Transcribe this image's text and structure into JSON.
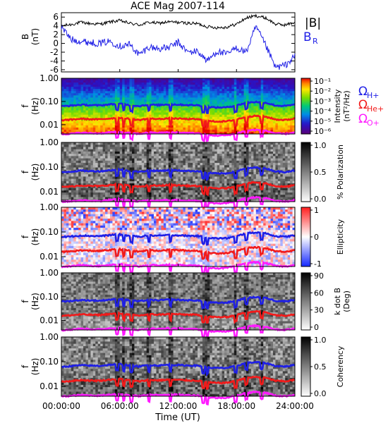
{
  "title": "ACE Mag 2007-114",
  "xaxis": {
    "label": "Time (UT)",
    "ticks": [
      "00:00:00",
      "06:00:00",
      "12:00:00",
      "18:00:00",
      "24:00:00"
    ],
    "range_hours": [
      0,
      24
    ]
  },
  "colors": {
    "black": "#000000",
    "blue": "#1f1fe6",
    "red": "#f21a1a",
    "magenta": "#ff1aff"
  },
  "legend": {
    "b_total": "|B|",
    "b_r": "B",
    "b_r_sub": "R",
    "omega": "Ω",
    "h": "H+",
    "he": "He+",
    "o": "O+"
  },
  "panels": [
    {
      "id": "field",
      "ylabel": "B",
      "yunit": "(nT)",
      "yticks": [
        "6",
        "4",
        "2",
        "0",
        "-2",
        "-4",
        "-6"
      ],
      "ylim": [
        -6.5,
        7
      ]
    },
    {
      "id": "intensity",
      "ylabel": "f",
      "yunit": "(Hz)",
      "yticks": [
        "1.00",
        "0.10",
        "0.01"
      ],
      "colorbar": {
        "label": "Intensity",
        "unit": "(nT²/Hz)",
        "ticks": [
          "10⁻¹",
          "10⁻²",
          "10⁻³",
          "10⁻⁴",
          "10⁻⁵",
          "10⁻⁶"
        ],
        "scale": "rainbow"
      }
    },
    {
      "id": "polarization",
      "ylabel": "f",
      "yunit": "(Hz)",
      "yticks": [
        "1.00",
        "0.10",
        "0.01"
      ],
      "colorbar": {
        "label": "% Polarization",
        "unit": "",
        "ticks": [
          "1.0",
          "0.5",
          "0.0"
        ],
        "scale": "gray"
      }
    },
    {
      "id": "ellipticity",
      "ylabel": "f",
      "yunit": "(Hz)",
      "yticks": [
        "1.00",
        "0.10",
        "0.01"
      ],
      "colorbar": {
        "label": "Ellipticity",
        "unit": "",
        "ticks": [
          "1",
          "0",
          "-1"
        ],
        "scale": "bwr"
      }
    },
    {
      "id": "kdotb",
      "ylabel": "f",
      "yunit": "(Hz)",
      "yticks": [
        "1.00",
        "0.10",
        "0.01"
      ],
      "colorbar": {
        "label": "k dot B",
        "unit": "(Deg)",
        "ticks": [
          "90",
          "60",
          "30",
          "0"
        ],
        "scale": "gray"
      }
    },
    {
      "id": "coherency",
      "ylabel": "f",
      "yunit": "(Hz)",
      "yticks": [
        "1.00",
        "0.10",
        "0.01"
      ],
      "colorbar": {
        "label": "Coherency",
        "unit": "",
        "ticks": [
          "1.0",
          "0.5",
          "0.0"
        ],
        "scale": "gray"
      }
    }
  ],
  "chart_data": [
    {
      "type": "line",
      "title": "ACE Mag 2007-114",
      "xlabel": "Time (UT)",
      "ylabel": "B (nT)",
      "xlim": [
        0,
        24
      ],
      "ylim": [
        -6.5,
        7
      ],
      "x": [
        0,
        1,
        2,
        3,
        4,
        5,
        6,
        7,
        8,
        9,
        10,
        11,
        12,
        13,
        14,
        15,
        16,
        17,
        18,
        19,
        20,
        21,
        22,
        23,
        24
      ],
      "series": [
        {
          "name": "|B|",
          "color": "#000000",
          "values": [
            4.0,
            4.3,
            4.8,
            4.5,
            4.4,
            4.9,
            5.2,
            4.6,
            4.2,
            4.8,
            4.6,
            4.9,
            4.8,
            4.6,
            4.5,
            3.8,
            3.6,
            3.7,
            4.4,
            5.8,
            6.3,
            5.8,
            4.4,
            4.2,
            4.8
          ]
        },
        {
          "name": "B_R",
          "color": "#1f1fe6",
          "values": [
            3.8,
            0.9,
            0.5,
            0.2,
            0.0,
            0.5,
            -0.6,
            -0.2,
            -2.6,
            -0.8,
            -1.2,
            -1.0,
            0.2,
            -2.0,
            -1.8,
            -4.0,
            -1.8,
            -2.5,
            -1.0,
            -2.0,
            3.8,
            -0.5,
            -5.5,
            -5.0,
            -3.0
          ]
        }
      ]
    },
    {
      "type": "heatmap",
      "title": "",
      "xlabel": "Time (UT)",
      "ylabel": "f (Hz)",
      "yscale": "log",
      "xlim": [
        0,
        24
      ],
      "ylim": [
        0.004,
        1.0
      ],
      "colorbar": "Intensity (nT²/Hz)",
      "overlay_x": [
        0,
        1,
        2,
        3,
        4,
        5,
        6,
        7,
        8,
        9,
        10,
        11,
        12,
        13,
        14,
        15,
        16,
        17,
        18,
        19,
        20,
        21,
        22,
        23,
        24
      ],
      "series": [
        {
          "name": "Ω H+",
          "color": "#1f1fe6",
          "values": [
            0.062,
            0.066,
            0.072,
            0.069,
            0.068,
            0.075,
            0.08,
            0.07,
            0.064,
            0.073,
            0.07,
            0.075,
            0.073,
            0.07,
            0.069,
            0.058,
            0.055,
            0.056,
            0.067,
            0.088,
            0.096,
            0.088,
            0.067,
            0.064,
            0.073
          ]
        },
        {
          "name": "Ω He+",
          "color": "#f21a1a",
          "values": [
            0.0155,
            0.0165,
            0.018,
            0.0172,
            0.017,
            0.0187,
            0.02,
            0.0175,
            0.016,
            0.0183,
            0.0175,
            0.0187,
            0.0183,
            0.0175,
            0.0172,
            0.0145,
            0.0137,
            0.014,
            0.0168,
            0.022,
            0.024,
            0.022,
            0.0168,
            0.016,
            0.0183
          ]
        },
        {
          "name": "Ω O+",
          "color": "#ff1aff",
          "values": [
            0.0039,
            0.0041,
            0.0045,
            0.0043,
            0.0042,
            0.0047,
            0.005,
            0.0044,
            0.004,
            0.0046,
            0.0044,
            0.0047,
            0.0046,
            0.0044,
            0.0043,
            0.0036,
            0.0034,
            0.0035,
            0.0042,
            0.0055,
            0.006,
            0.0055,
            0.0042,
            0.004,
            0.0046
          ]
        }
      ]
    },
    {
      "type": "heatmap",
      "title": "",
      "ylabel": "f (Hz)",
      "yscale": "log",
      "colorbar": "% Polarization",
      "clim": [
        0.0,
        1.0
      ]
    },
    {
      "type": "heatmap",
      "title": "",
      "ylabel": "f (Hz)",
      "yscale": "log",
      "colorbar": "Ellipticity",
      "clim": [
        -1,
        1
      ]
    },
    {
      "type": "heatmap",
      "title": "",
      "ylabel": "f (Hz)",
      "yscale": "log",
      "colorbar": "k dot B (Deg)",
      "clim": [
        0,
        90
      ]
    },
    {
      "type": "heatmap",
      "title": "",
      "ylabel": "f (Hz)",
      "yscale": "log",
      "colorbar": "Coherency",
      "clim": [
        0.0,
        1.0
      ]
    }
  ]
}
